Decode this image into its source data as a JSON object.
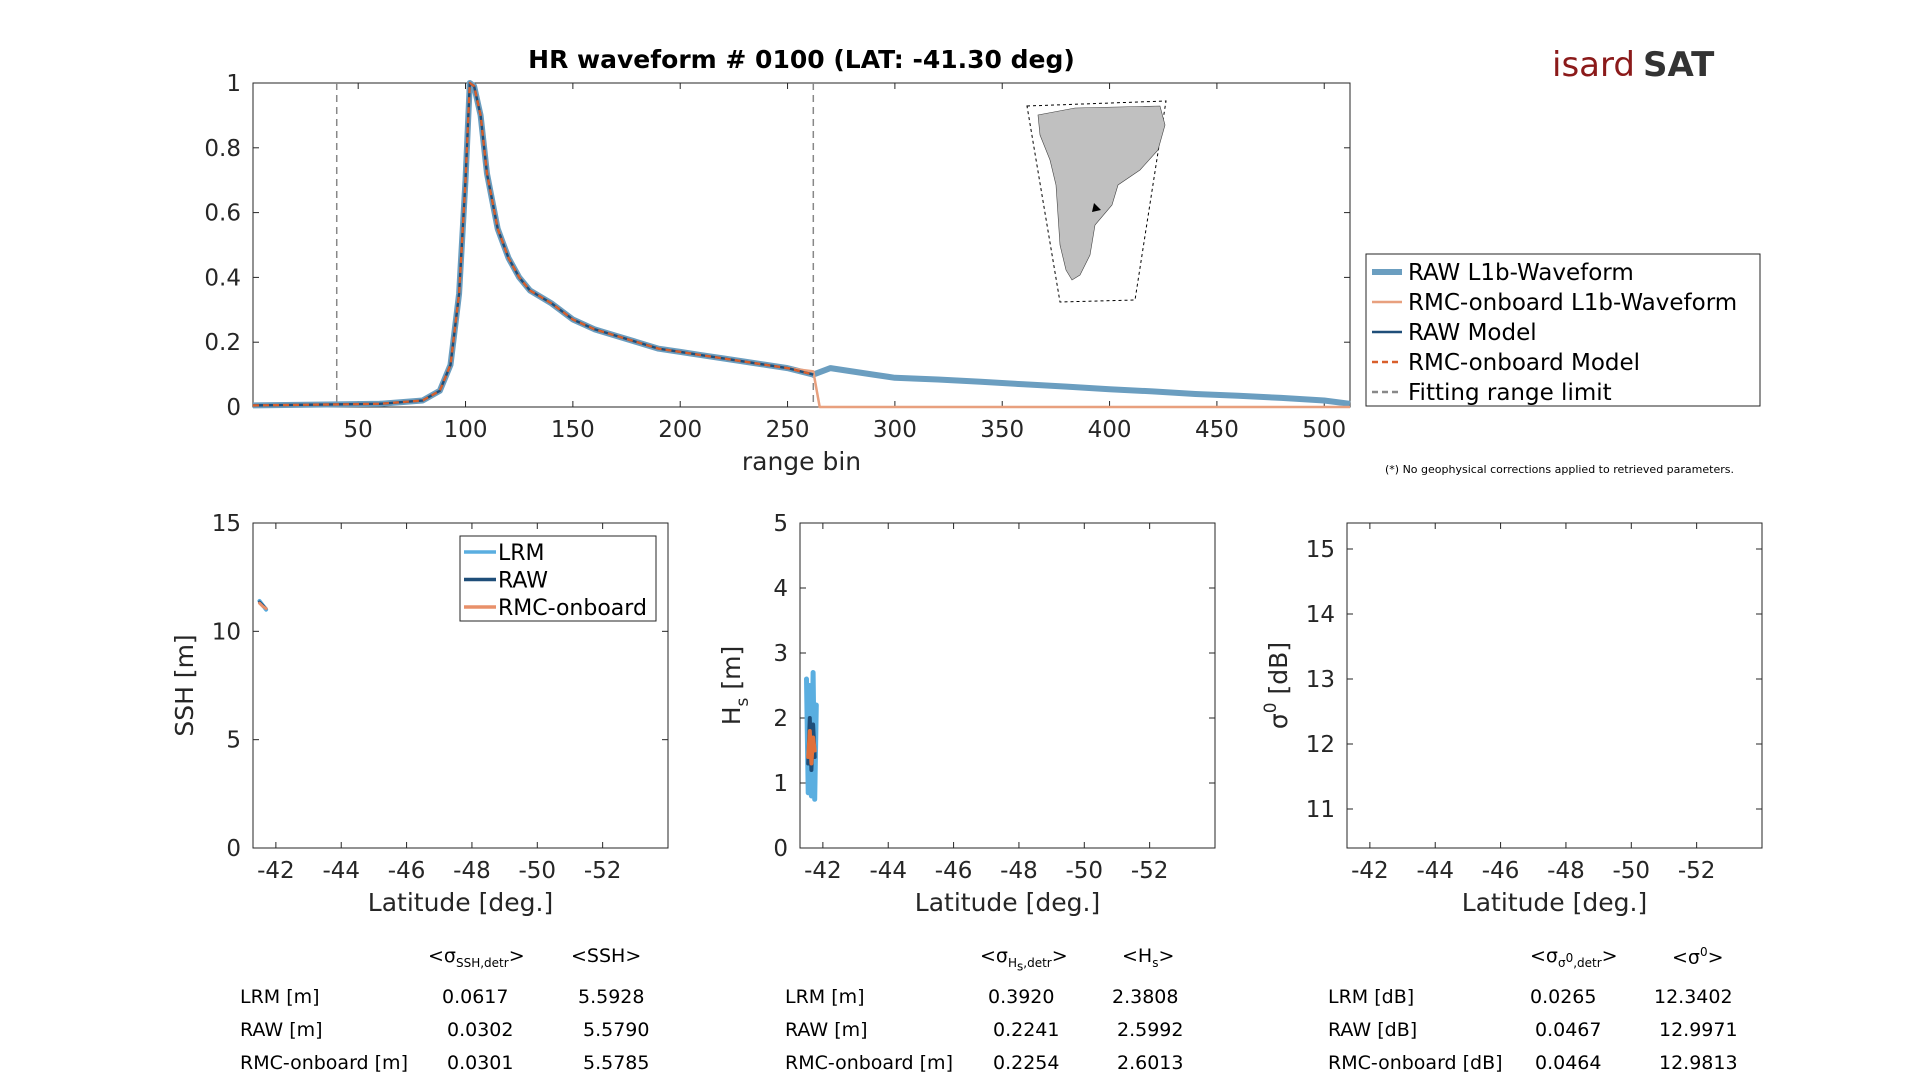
{
  "logo": {
    "text_a": "isard",
    "text_b": "SAT",
    "color_a": "#8b1a1a",
    "color_b": "#333333"
  },
  "note": "(*) No geophysical corrections applied to retrieved parameters.",
  "chart_data": [
    {
      "type": "line",
      "title": "HR waveform # 0100 (LAT: -41.30 deg)",
      "xlabel": "range bin",
      "ylabel": "",
      "xlim": [
        1,
        512
      ],
      "ylim": [
        0,
        1
      ],
      "xticks": [
        50,
        100,
        150,
        200,
        250,
        300,
        350,
        400,
        450,
        500
      ],
      "yticks": [
        0,
        0.2,
        0.4,
        0.6,
        0.8,
        1
      ],
      "ytick_labels": [
        "0",
        "0.2",
        "0.4",
        "0.6",
        "0.8",
        "1"
      ],
      "fitting_range_limits": [
        40,
        262
      ],
      "legend_position": "right",
      "series": [
        {
          "name": "RAW L1b-Waveform",
          "color": "#6b9ec0",
          "style": "solid-thick",
          "x": [
            1,
            40,
            60,
            80,
            88,
            93,
            97,
            100,
            102,
            104,
            107,
            110,
            115,
            120,
            125,
            130,
            140,
            150,
            160,
            170,
            180,
            190,
            200,
            210,
            220,
            230,
            240,
            250,
            262,
            270,
            280,
            290,
            300,
            320,
            340,
            360,
            380,
            400,
            420,
            440,
            460,
            480,
            500,
            512
          ],
          "y": [
            0.005,
            0.008,
            0.01,
            0.02,
            0.05,
            0.13,
            0.35,
            0.7,
            1.0,
            0.99,
            0.9,
            0.72,
            0.55,
            0.46,
            0.4,
            0.36,
            0.32,
            0.27,
            0.24,
            0.22,
            0.2,
            0.18,
            0.17,
            0.16,
            0.15,
            0.14,
            0.13,
            0.12,
            0.1,
            0.12,
            0.11,
            0.1,
            0.09,
            0.085,
            0.078,
            0.07,
            0.063,
            0.055,
            0.048,
            0.04,
            0.035,
            0.028,
            0.02,
            0.01
          ]
        },
        {
          "name": "RMC-onboard L1b-Waveform",
          "color": "#e8a07e",
          "style": "solid",
          "x": [
            1,
            40,
            60,
            80,
            88,
            93,
            97,
            100,
            102,
            104,
            107,
            110,
            115,
            120,
            125,
            130,
            140,
            150,
            160,
            170,
            180,
            190,
            200,
            210,
            220,
            230,
            240,
            250,
            262,
            265,
            512
          ],
          "y": [
            0.005,
            0.008,
            0.01,
            0.02,
            0.05,
            0.13,
            0.35,
            0.7,
            1.0,
            0.99,
            0.9,
            0.72,
            0.55,
            0.46,
            0.4,
            0.36,
            0.32,
            0.27,
            0.24,
            0.22,
            0.2,
            0.18,
            0.17,
            0.16,
            0.15,
            0.14,
            0.13,
            0.12,
            0.11,
            0.0,
            0.0
          ]
        },
        {
          "name": "RAW Model",
          "color": "#1f4e79",
          "style": "solid",
          "x": [
            1,
            40,
            60,
            80,
            88,
            93,
            97,
            100,
            102,
            104,
            107,
            110,
            115,
            120,
            125,
            130,
            140,
            150,
            160,
            170,
            180,
            190,
            200,
            210,
            220,
            230,
            240,
            250,
            262
          ],
          "y": [
            0.005,
            0.008,
            0.01,
            0.02,
            0.05,
            0.13,
            0.35,
            0.7,
            1.0,
            0.99,
            0.9,
            0.72,
            0.55,
            0.46,
            0.4,
            0.36,
            0.32,
            0.27,
            0.24,
            0.22,
            0.2,
            0.18,
            0.17,
            0.16,
            0.15,
            0.14,
            0.13,
            0.12,
            0.1
          ]
        },
        {
          "name": "RMC-onboard Model",
          "color": "#d95f2b",
          "style": "dashed",
          "x": [
            1,
            40,
            60,
            80,
            88,
            93,
            97,
            100,
            102,
            104,
            107,
            110,
            115,
            120,
            125,
            130,
            140,
            150,
            160,
            170,
            180,
            190,
            200,
            210,
            220,
            230,
            240,
            250,
            262
          ],
          "y": [
            0.005,
            0.008,
            0.01,
            0.02,
            0.05,
            0.13,
            0.35,
            0.7,
            1.0,
            0.99,
            0.9,
            0.72,
            0.55,
            0.46,
            0.4,
            0.36,
            0.32,
            0.27,
            0.24,
            0.22,
            0.2,
            0.18,
            0.17,
            0.16,
            0.15,
            0.14,
            0.13,
            0.12,
            0.1
          ]
        },
        {
          "name": "Fitting range limit",
          "color": "#888888",
          "style": "dashed",
          "x": [],
          "y": []
        }
      ]
    },
    {
      "type": "line",
      "title": "",
      "xlabel": "Latitude [deg.]",
      "ylabel": "SSH [m]",
      "xlim": [
        -41.3,
        -54.0
      ],
      "ylim": [
        0,
        15
      ],
      "xticks": [
        -42,
        -44,
        -46,
        -48,
        -50,
        -52
      ],
      "yticks": [
        0,
        5,
        10,
        15
      ],
      "legend_position": "top-right",
      "series": [
        {
          "name": "LRM",
          "color": "#5aaee0",
          "x": [
            -41.5,
            -41.6,
            -41.7
          ],
          "y": [
            11.4,
            11.2,
            11.0
          ]
        },
        {
          "name": "RAW",
          "color": "#1f4e79",
          "x": [
            -41.5,
            -41.6,
            -41.7
          ],
          "y": [
            11.35,
            11.2,
            11.05
          ]
        },
        {
          "name": "RMC-onboard",
          "color": "#e8906a",
          "x": [
            -41.5,
            -41.6,
            -41.7
          ],
          "y": [
            11.3,
            11.15,
            11.05
          ]
        }
      ],
      "stats": {
        "col_headers": [
          "σ_SSH,detr",
          "SSH"
        ],
        "rows": [
          {
            "label": "LRM [m]",
            "values": [
              "0.0617",
              "5.5928"
            ]
          },
          {
            "label": "RAW [m]",
            "values": [
              "0.0302",
              "5.5790"
            ]
          },
          {
            "label": "RMC-onboard [m]",
            "values": [
              "0.0301",
              "5.5785"
            ]
          }
        ]
      }
    },
    {
      "type": "line",
      "title": "",
      "xlabel": "Latitude [deg.]",
      "ylabel": "H_s [m]",
      "xlim": [
        -41.3,
        -54.0
      ],
      "ylim": [
        0,
        5
      ],
      "xticks": [
        -42,
        -44,
        -46,
        -48,
        -50,
        -52
      ],
      "yticks": [
        0,
        1,
        2,
        3,
        4,
        5
      ],
      "series": [
        {
          "name": "LRM",
          "color": "#5aaee0",
          "x": [
            -41.5,
            -41.55,
            -41.6,
            -41.65,
            -41.7,
            -41.75,
            -41.8
          ],
          "y": [
            2.6,
            0.85,
            2.5,
            0.8,
            2.7,
            0.75,
            2.2
          ]
        },
        {
          "name": "RAW",
          "color": "#1f4e79",
          "x": [
            -41.55,
            -41.6,
            -41.65,
            -41.7,
            -41.75
          ],
          "y": [
            1.3,
            2.0,
            1.2,
            1.9,
            1.4
          ]
        },
        {
          "name": "RMC-onboard",
          "color": "#e0703a",
          "x": [
            -41.55,
            -41.6,
            -41.65,
            -41.7,
            -41.75
          ],
          "y": [
            1.4,
            1.8,
            1.3,
            1.7,
            1.5
          ]
        }
      ],
      "stats": {
        "col_headers": [
          "σ_Hs,detr",
          "Hs"
        ],
        "rows": [
          {
            "label": "LRM [m]",
            "values": [
              "0.3920",
              "2.3808"
            ]
          },
          {
            "label": "RAW [m]",
            "values": [
              "0.2241",
              "2.5992"
            ]
          },
          {
            "label": "RMC-onboard [m]",
            "values": [
              "0.2254",
              "2.6013"
            ]
          }
        ]
      }
    },
    {
      "type": "line",
      "title": "",
      "xlabel": "Latitude [deg.]",
      "ylabel": "σ0 [dB]",
      "xlim": [
        -41.3,
        -54.0
      ],
      "ylim": [
        10.4,
        15.4
      ],
      "xticks": [
        -42,
        -44,
        -46,
        -48,
        -50,
        -52
      ],
      "yticks": [
        11,
        12,
        13,
        14,
        15
      ],
      "series": [],
      "stats": {
        "col_headers": [
          "σ_σ0,detr",
          "σ0"
        ],
        "rows": [
          {
            "label": "LRM [dB]",
            "values": [
              "0.0265",
              "12.3402"
            ]
          },
          {
            "label": "RAW [dB]",
            "values": [
              "0.0467",
              "12.9971"
            ]
          },
          {
            "label": "RMC-onboard [dB]",
            "values": [
              "0.0464",
              "12.9813"
            ]
          }
        ]
      }
    }
  ]
}
